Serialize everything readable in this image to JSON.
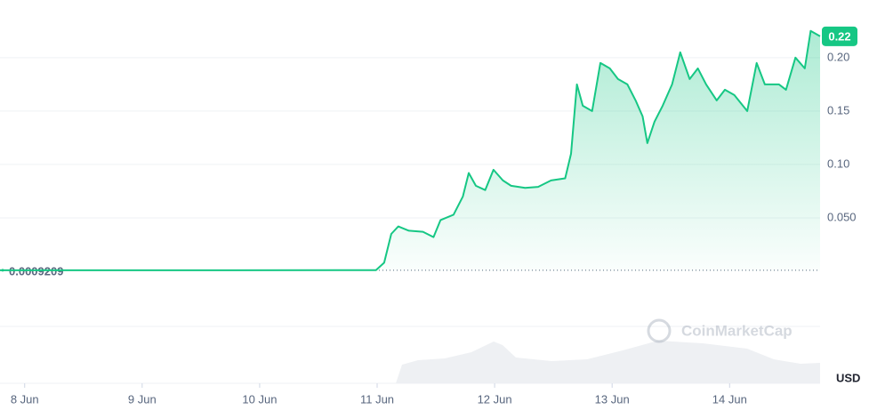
{
  "chart_data": {
    "type": "line",
    "x": [
      7.79,
      10.99,
      11.06,
      11.12,
      11.18,
      11.27,
      11.39,
      11.48,
      11.54,
      11.65,
      11.73,
      11.78,
      11.84,
      11.92,
      11.99,
      12.07,
      12.14,
      12.26,
      12.37,
      12.48,
      12.6,
      12.65,
      12.7,
      12.75,
      12.83,
      12.9,
      12.98,
      13.05,
      13.13,
      13.2,
      13.26,
      13.3,
      13.36,
      13.43,
      13.51,
      13.58,
      13.66,
      13.73,
      13.8,
      13.89,
      13.96,
      14.04,
      14.15,
      14.23,
      14.3,
      14.42,
      14.48,
      14.56,
      14.64,
      14.69,
      14.77
    ],
    "series": [
      {
        "color": "#16c784",
        "values": [
          0.0009,
          0.001,
          0.008,
          0.035,
          0.042,
          0.038,
          0.037,
          0.032,
          0.048,
          0.053,
          0.07,
          0.092,
          0.08,
          0.076,
          0.095,
          0.085,
          0.08,
          0.078,
          0.079,
          0.085,
          0.087,
          0.11,
          0.175,
          0.155,
          0.15,
          0.195,
          0.19,
          0.18,
          0.175,
          0.16,
          0.145,
          0.12,
          0.14,
          0.155,
          0.175,
          0.205,
          0.18,
          0.19,
          0.175,
          0.16,
          0.17,
          0.165,
          0.15,
          0.195,
          0.175,
          0.175,
          0.17,
          0.2,
          0.19,
          0.225,
          0.22
        ]
      }
    ],
    "xlim": [
      7.79,
      14.77
    ],
    "xticks": [
      {
        "value": 8,
        "label": "8 Jun"
      },
      {
        "value": 9,
        "label": "9 Jun"
      },
      {
        "value": 10,
        "label": "10 Jun"
      },
      {
        "value": 11,
        "label": "11 Jun"
      },
      {
        "value": 12,
        "label": "12 Jun"
      },
      {
        "value": 13,
        "label": "13 Jun"
      },
      {
        "value": 14,
        "label": "14 Jun"
      }
    ],
    "ylim": [
      0,
      0.254
    ],
    "yticks": [
      {
        "value": 0.05,
        "label": "0.050"
      },
      {
        "value": 0.1,
        "label": "0.10"
      },
      0.15,
      {
        "value": 0.2,
        "label": "0.20"
      }
    ],
    "grid": true,
    "last_price": 0.22,
    "open_price": 0.0009209,
    "currency": "USD",
    "watermark": "CoinMarketCap"
  }
}
